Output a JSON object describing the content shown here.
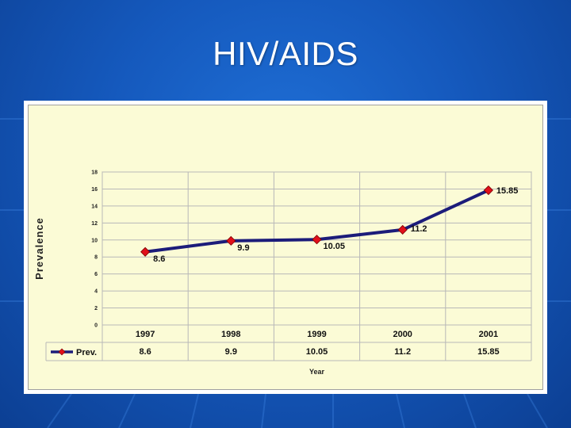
{
  "slide": {
    "title": "HIV/AIDS"
  },
  "colors": {
    "background": "#1559bd",
    "line": "#1c1c7a",
    "marker": "#e0101a",
    "plot_bg": "#fbfbd6"
  },
  "chart_data": {
    "type": "line",
    "categories": [
      "1997",
      "1998",
      "1999",
      "2000",
      "2001"
    ],
    "series": [
      {
        "name": "Prev.",
        "values": [
          8.6,
          9.9,
          10.05,
          11.2,
          15.85
        ]
      }
    ],
    "data_labels": [
      "8.6",
      "9.9",
      "10.05",
      "11.2",
      "15.85"
    ],
    "ylabel": "Prevalence",
    "xlabel": "Year",
    "ylim": [
      0,
      18
    ],
    "yticks": [
      "0",
      "2",
      "4",
      "6",
      "8",
      "10",
      "12",
      "14",
      "16",
      "18"
    ],
    "grid": true,
    "legend": "data table below x-axis"
  }
}
